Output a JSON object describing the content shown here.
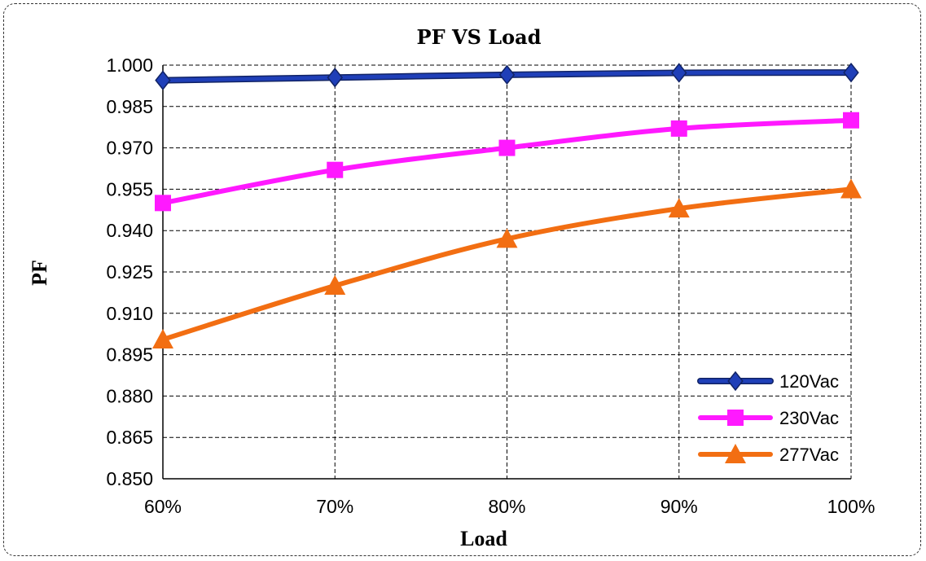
{
  "chart_data": {
    "type": "line",
    "title": "PF VS Load",
    "xlabel": "Load",
    "ylabel": "PF",
    "categories": [
      "60%",
      "70%",
      "80%",
      "90%",
      "100%"
    ],
    "ylim": [
      0.85,
      1.0
    ],
    "yticks": [
      "0.850",
      "0.865",
      "0.880",
      "0.895",
      "0.910",
      "0.925",
      "0.940",
      "0.955",
      "0.970",
      "0.985",
      "1.000"
    ],
    "grid": "dashed",
    "legend_position": "bottom-right",
    "series": [
      {
        "name": "120Vac",
        "color": "#1f3fb8",
        "marker": "diamond",
        "values": [
          0.9945,
          0.9955,
          0.9965,
          0.9972,
          0.9973
        ]
      },
      {
        "name": "230Vac",
        "color": "#ff19ff",
        "marker": "square",
        "values": [
          0.95,
          0.962,
          0.97,
          0.977,
          0.98
        ]
      },
      {
        "name": "277Vac",
        "color": "#f26e12",
        "marker": "triangle",
        "values": [
          0.9005,
          0.92,
          0.937,
          0.948,
          0.955
        ]
      }
    ]
  }
}
